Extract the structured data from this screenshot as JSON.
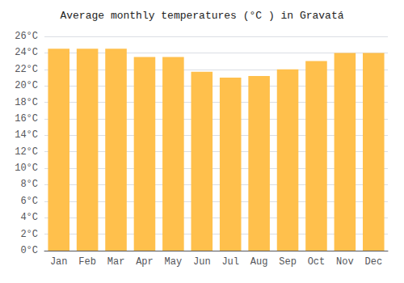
{
  "chart_data": {
    "type": "bar",
    "title": "Average monthly temperatures (°C ) in Gravatá",
    "categories": [
      "Jan",
      "Feb",
      "Mar",
      "Apr",
      "May",
      "Jun",
      "Jul",
      "Aug",
      "Sep",
      "Oct",
      "Nov",
      "Dec"
    ],
    "values": [
      24.5,
      24.5,
      24.5,
      23.5,
      23.5,
      21.7,
      21.0,
      21.2,
      22.0,
      23.0,
      24.0,
      24.0
    ],
    "color": "#FFC04C",
    "ylim": [
      0,
      26
    ],
    "yticks": [
      {
        "value": 0,
        "label": "0°C"
      },
      {
        "value": 2,
        "label": "2°C"
      },
      {
        "value": 4,
        "label": "4°C"
      },
      {
        "value": 6,
        "label": "6°C"
      },
      {
        "value": 8,
        "label": "8°C"
      },
      {
        "value": 10,
        "label": "10°C"
      },
      {
        "value": 12,
        "label": "12°C"
      },
      {
        "value": 14,
        "label": "14°C"
      },
      {
        "value": 16,
        "label": "16°C"
      },
      {
        "value": 18,
        "label": "18°C"
      },
      {
        "value": 20,
        "label": "20°C"
      },
      {
        "value": 22,
        "label": "22°C"
      },
      {
        "value": 24,
        "label": "24°C"
      },
      {
        "value": 26,
        "label": "26°C"
      }
    ],
    "grid": true
  }
}
